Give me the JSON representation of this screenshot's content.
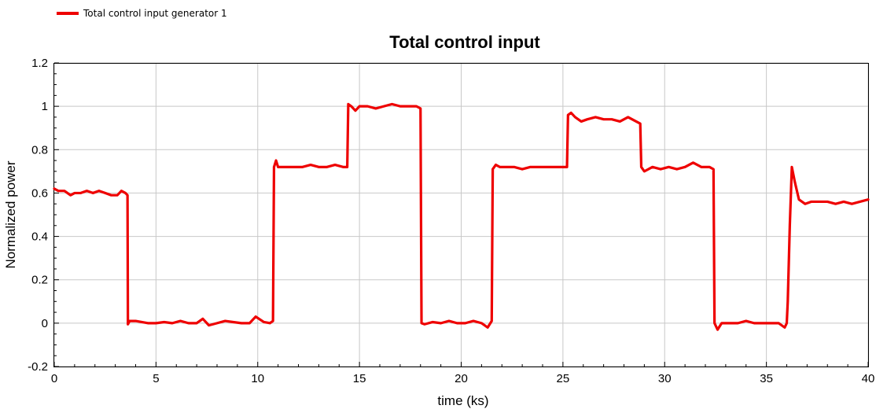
{
  "chart_data": {
    "type": "line",
    "title": "Total control input",
    "xlabel": "time (ks)",
    "ylabel": "Normalized power",
    "xlim": [
      0,
      40
    ],
    "ylim": [
      -0.2,
      1.2
    ],
    "x_ticks": [
      "0",
      "5",
      "10",
      "15",
      "20",
      "25",
      "30",
      "35",
      "40"
    ],
    "y_ticks": [
      "-0.2",
      "0",
      "0.2",
      "0.4",
      "0.6",
      "0.8",
      "1",
      "1.2"
    ],
    "grid": true,
    "legend_position": "top-left",
    "series": [
      {
        "name": "Total control input generator 1",
        "color": "#ee0000",
        "x": [
          0,
          0.2,
          0.5,
          0.8,
          1.0,
          1.3,
          1.6,
          1.9,
          2.2,
          2.5,
          2.8,
          3.1,
          3.3,
          3.5,
          3.6,
          3.62,
          3.7,
          4.0,
          4.3,
          4.6,
          5.0,
          5.4,
          5.8,
          6.2,
          6.6,
          7.0,
          7.3,
          7.6,
          8.0,
          8.4,
          8.8,
          9.2,
          9.6,
          9.9,
          10.3,
          10.6,
          10.75,
          10.8,
          10.9,
          11.0,
          11.4,
          11.8,
          12.2,
          12.6,
          13.0,
          13.4,
          13.8,
          14.2,
          14.4,
          14.45,
          14.6,
          14.8,
          15.0,
          15.4,
          15.8,
          16.2,
          16.6,
          17.0,
          17.4,
          17.8,
          18.0,
          18.05,
          18.2,
          18.6,
          19.0,
          19.4,
          19.8,
          20.2,
          20.6,
          21.0,
          21.3,
          21.5,
          21.55,
          21.7,
          21.9,
          22.2,
          22.6,
          23.0,
          23.4,
          23.8,
          24.2,
          24.6,
          25.0,
          25.2,
          25.25,
          25.4,
          25.6,
          25.9,
          26.2,
          26.6,
          27.0,
          27.4,
          27.8,
          28.2,
          28.6,
          28.8,
          28.85,
          29.0,
          29.4,
          29.8,
          30.2,
          30.6,
          31.0,
          31.4,
          31.8,
          32.2,
          32.4,
          32.45,
          32.6,
          32.8,
          33.2,
          33.6,
          34.0,
          34.4,
          34.8,
          35.2,
          35.6,
          35.9,
          36.0,
          36.05,
          36.15,
          36.25,
          36.4,
          36.6,
          36.9,
          37.2,
          37.6,
          38.0,
          38.4,
          38.8,
          39.2,
          39.6,
          40.0
        ],
        "y": [
          0.62,
          0.61,
          0.61,
          0.59,
          0.6,
          0.6,
          0.61,
          0.6,
          0.61,
          0.6,
          0.59,
          0.59,
          0.61,
          0.6,
          0.59,
          -0.005,
          0.01,
          0.01,
          0.005,
          0.0,
          0.0,
          0.005,
          0.0,
          0.01,
          0.0,
          0.0,
          0.02,
          -0.01,
          0.0,
          0.01,
          0.005,
          0.0,
          0.0,
          0.03,
          0.005,
          0.0,
          0.01,
          0.72,
          0.75,
          0.72,
          0.72,
          0.72,
          0.72,
          0.73,
          0.72,
          0.72,
          0.73,
          0.72,
          0.72,
          1.01,
          1.0,
          0.98,
          1.0,
          1.0,
          0.99,
          1.0,
          1.01,
          1.0,
          1.0,
          1.0,
          0.99,
          0.0,
          -0.005,
          0.005,
          0.0,
          0.01,
          0.0,
          0.0,
          0.01,
          0.0,
          -0.02,
          0.01,
          0.71,
          0.73,
          0.72,
          0.72,
          0.72,
          0.71,
          0.72,
          0.72,
          0.72,
          0.72,
          0.72,
          0.72,
          0.96,
          0.97,
          0.95,
          0.93,
          0.94,
          0.95,
          0.94,
          0.94,
          0.93,
          0.95,
          0.93,
          0.92,
          0.72,
          0.7,
          0.72,
          0.71,
          0.72,
          0.71,
          0.72,
          0.74,
          0.72,
          0.72,
          0.71,
          0.0,
          -0.03,
          0.0,
          0.0,
          0.0,
          0.01,
          0.0,
          0.0,
          0.0,
          0.0,
          -0.02,
          0.0,
          0.1,
          0.45,
          0.72,
          0.65,
          0.57,
          0.55,
          0.56,
          0.56,
          0.56,
          0.55,
          0.56,
          0.55,
          0.56,
          0.57
        ]
      }
    ]
  }
}
